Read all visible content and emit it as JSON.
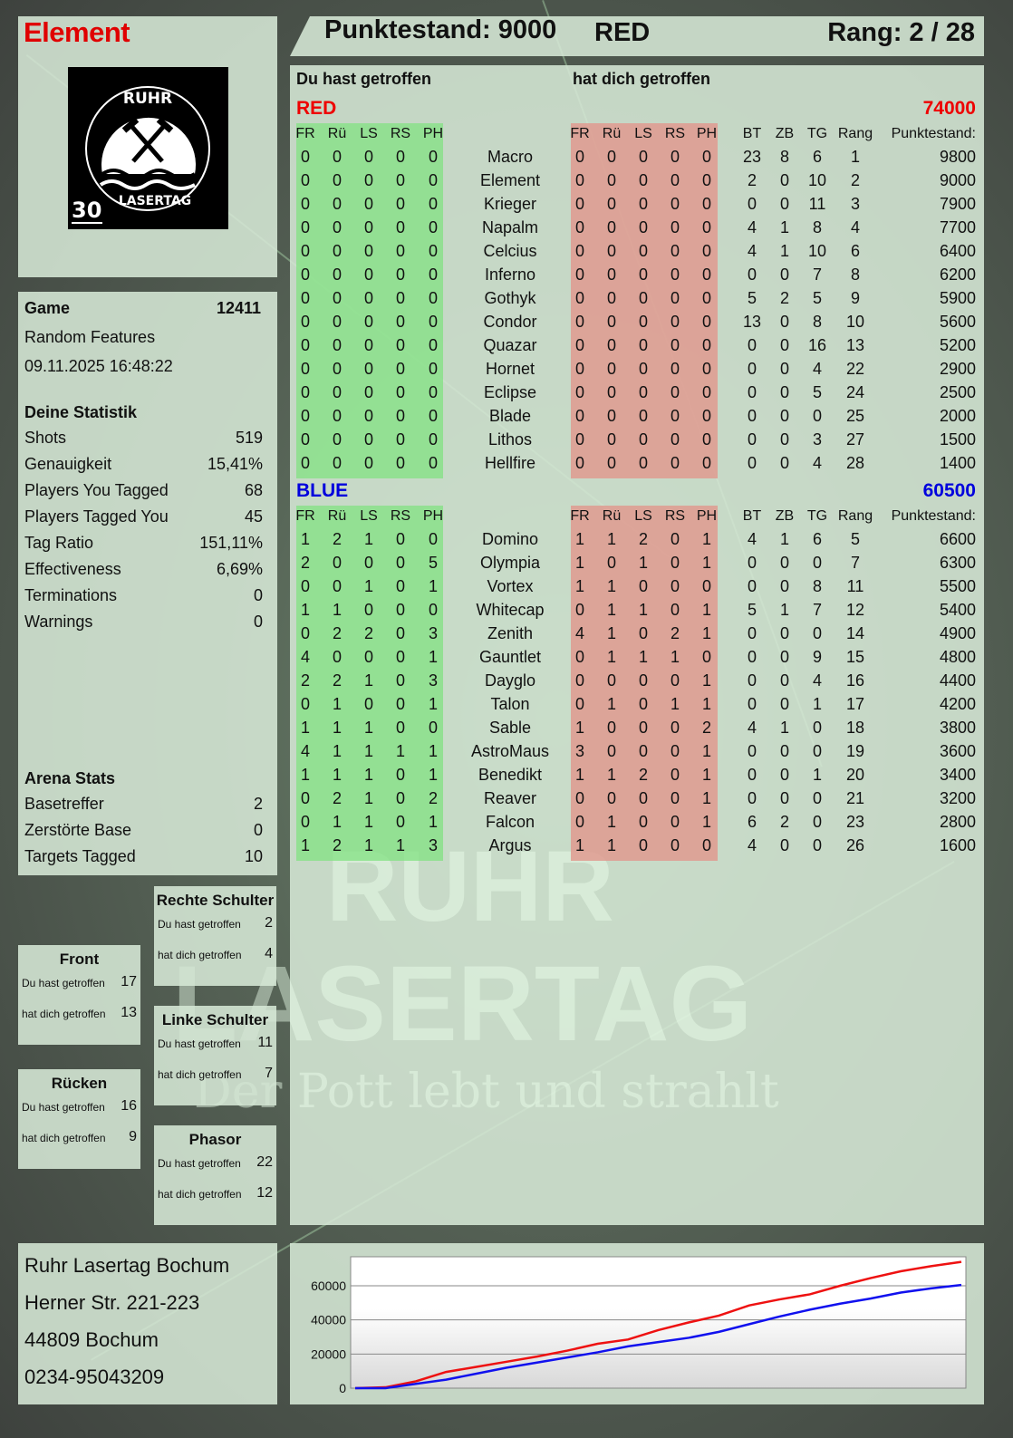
{
  "player": {
    "name": "Element",
    "score_label": "Punktestand: 9000",
    "team": "RED",
    "rank_label": "Rang: 2 / 28"
  },
  "logo": {
    "top_text": "RUHR",
    "bottom_text": "LASERTAG",
    "badge": "30"
  },
  "watermark": {
    "line1": "RUHR",
    "line2": "LASERTAG",
    "slogan": "Der Pott lebt und strahlt"
  },
  "game": {
    "label": "Game",
    "id": "12411",
    "mode": "Random Features",
    "datetime": "09.11.2025 16:48:22"
  },
  "stats": {
    "title": "Deine Statistik",
    "rows": [
      {
        "label": "Shots",
        "value": "519"
      },
      {
        "label": "Genauigkeit",
        "value": "15,41%"
      },
      {
        "label": "Players You Tagged",
        "value": "68"
      },
      {
        "label": "Players Tagged You",
        "value": "45"
      },
      {
        "label": "Tag Ratio",
        "value": "151,11%"
      },
      {
        "label": "Effectiveness",
        "value": "6,69%"
      },
      {
        "label": "Terminations",
        "value": "0"
      },
      {
        "label": "Warnings",
        "value": "0"
      }
    ]
  },
  "arena": {
    "title": "Arena Stats",
    "rows": [
      {
        "label": "Basetreffer",
        "value": "2"
      },
      {
        "label": "Zerstörte Base",
        "value": "0"
      },
      {
        "label": "Targets Tagged",
        "value": "10"
      }
    ]
  },
  "zones": [
    {
      "title": "Rechte Schulter",
      "hit_label": "Du hast getroffen",
      "hit": "2",
      "got_label": "hat dich getroffen",
      "got": "4"
    },
    {
      "title": "Front",
      "hit_label": "Du hast getroffen",
      "hit": "17",
      "got_label": "hat dich getroffen",
      "got": "13"
    },
    {
      "title": "Linke Schulter",
      "hit_label": "Du hast getroffen",
      "hit": "11",
      "got_label": "hat dich getroffen",
      "got": "7"
    },
    {
      "title": "Rücken",
      "hit_label": "Du hast getroffen",
      "hit": "16",
      "got_label": "hat dich getroffen",
      "got": "9"
    },
    {
      "title": "Phasor",
      "hit_label": "Du hast getroffen",
      "hit": "22",
      "got_label": "hat dich getroffen",
      "got": "12"
    }
  ],
  "address": [
    "Ruhr Lasertag Bochum",
    "Herner Str. 221-223",
    "44809 Bochum",
    "0234-95043209"
  ],
  "table": {
    "you_hit": "Du hast getroffen",
    "hit_you": "hat dich getroffen",
    "hit_cols": [
      "FR",
      "Rü",
      "LS",
      "RS",
      "PH"
    ],
    "stat_cols": [
      "BT",
      "ZB",
      "TG",
      "Rang"
    ],
    "score_col": "Punktestand:",
    "teams": [
      {
        "name": "RED",
        "total": "74000",
        "color": "#ee0000",
        "players": [
          [
            "Macro",
            [
              0,
              0,
              0,
              0,
              0
            ],
            [
              0,
              0,
              0,
              0,
              0
            ],
            [
              23,
              8,
              6,
              1
            ],
            9800
          ],
          [
            "Element",
            [
              0,
              0,
              0,
              0,
              0
            ],
            [
              0,
              0,
              0,
              0,
              0
            ],
            [
              2,
              0,
              10,
              2
            ],
            9000
          ],
          [
            "Krieger",
            [
              0,
              0,
              0,
              0,
              0
            ],
            [
              0,
              0,
              0,
              0,
              0
            ],
            [
              0,
              0,
              11,
              3
            ],
            7900
          ],
          [
            "Napalm",
            [
              0,
              0,
              0,
              0,
              0
            ],
            [
              0,
              0,
              0,
              0,
              0
            ],
            [
              4,
              1,
              8,
              4
            ],
            7700
          ],
          [
            "Celcius",
            [
              0,
              0,
              0,
              0,
              0
            ],
            [
              0,
              0,
              0,
              0,
              0
            ],
            [
              4,
              1,
              10,
              6
            ],
            6400
          ],
          [
            "Inferno",
            [
              0,
              0,
              0,
              0,
              0
            ],
            [
              0,
              0,
              0,
              0,
              0
            ],
            [
              0,
              0,
              7,
              8
            ],
            6200
          ],
          [
            "Gothyk",
            [
              0,
              0,
              0,
              0,
              0
            ],
            [
              0,
              0,
              0,
              0,
              0
            ],
            [
              5,
              2,
              5,
              9
            ],
            5900
          ],
          [
            "Condor",
            [
              0,
              0,
              0,
              0,
              0
            ],
            [
              0,
              0,
              0,
              0,
              0
            ],
            [
              13,
              0,
              8,
              10
            ],
            5600
          ],
          [
            "Quazar",
            [
              0,
              0,
              0,
              0,
              0
            ],
            [
              0,
              0,
              0,
              0,
              0
            ],
            [
              0,
              0,
              16,
              13
            ],
            5200
          ],
          [
            "Hornet",
            [
              0,
              0,
              0,
              0,
              0
            ],
            [
              0,
              0,
              0,
              0,
              0
            ],
            [
              0,
              0,
              4,
              22
            ],
            2900
          ],
          [
            "Eclipse",
            [
              0,
              0,
              0,
              0,
              0
            ],
            [
              0,
              0,
              0,
              0,
              0
            ],
            [
              0,
              0,
              5,
              24
            ],
            2500
          ],
          [
            "Blade",
            [
              0,
              0,
              0,
              0,
              0
            ],
            [
              0,
              0,
              0,
              0,
              0
            ],
            [
              0,
              0,
              0,
              25
            ],
            2000
          ],
          [
            "Lithos",
            [
              0,
              0,
              0,
              0,
              0
            ],
            [
              0,
              0,
              0,
              0,
              0
            ],
            [
              0,
              0,
              3,
              27
            ],
            1500
          ],
          [
            "Hellfire",
            [
              0,
              0,
              0,
              0,
              0
            ],
            [
              0,
              0,
              0,
              0,
              0
            ],
            [
              0,
              0,
              4,
              28
            ],
            1400
          ]
        ]
      },
      {
        "name": "BLUE",
        "total": "60500",
        "color": "#0000dd",
        "players": [
          [
            "Domino",
            [
              1,
              2,
              1,
              0,
              0
            ],
            [
              1,
              1,
              2,
              0,
              1
            ],
            [
              4,
              1,
              6,
              5
            ],
            6600
          ],
          [
            "Olympia",
            [
              2,
              0,
              0,
              0,
              5
            ],
            [
              1,
              0,
              1,
              0,
              1
            ],
            [
              0,
              0,
              0,
              7
            ],
            6300
          ],
          [
            "Vortex",
            [
              0,
              0,
              1,
              0,
              1
            ],
            [
              1,
              1,
              0,
              0,
              0
            ],
            [
              0,
              0,
              8,
              11
            ],
            5500
          ],
          [
            "Whitecap",
            [
              1,
              1,
              0,
              0,
              0
            ],
            [
              0,
              1,
              1,
              0,
              1
            ],
            [
              5,
              1,
              7,
              12
            ],
            5400
          ],
          [
            "Zenith",
            [
              0,
              2,
              2,
              0,
              3
            ],
            [
              4,
              1,
              0,
              2,
              1
            ],
            [
              0,
              0,
              0,
              14
            ],
            4900
          ],
          [
            "Gauntlet",
            [
              4,
              0,
              0,
              0,
              1
            ],
            [
              0,
              1,
              1,
              1,
              0
            ],
            [
              0,
              0,
              9,
              15
            ],
            4800
          ],
          [
            "Dayglo",
            [
              2,
              2,
              1,
              0,
              3
            ],
            [
              0,
              0,
              0,
              0,
              1
            ],
            [
              0,
              0,
              4,
              16
            ],
            4400
          ],
          [
            "Talon",
            [
              0,
              1,
              0,
              0,
              1
            ],
            [
              0,
              1,
              0,
              1,
              1
            ],
            [
              0,
              0,
              1,
              17
            ],
            4200
          ],
          [
            "Sable",
            [
              1,
              1,
              1,
              0,
              0
            ],
            [
              1,
              0,
              0,
              0,
              2
            ],
            [
              4,
              1,
              0,
              18
            ],
            3800
          ],
          [
            "AstroMaus",
            [
              4,
              1,
              1,
              1,
              1
            ],
            [
              3,
              0,
              0,
              0,
              1
            ],
            [
              0,
              0,
              0,
              19
            ],
            3600
          ],
          [
            "Benedikt",
            [
              1,
              1,
              1,
              0,
              1
            ],
            [
              1,
              1,
              2,
              0,
              1
            ],
            [
              0,
              0,
              1,
              20
            ],
            3400
          ],
          [
            "Reaver",
            [
              0,
              2,
              1,
              0,
              2
            ],
            [
              0,
              0,
              0,
              0,
              1
            ],
            [
              0,
              0,
              0,
              21
            ],
            3200
          ],
          [
            "Falcon",
            [
              0,
              1,
              1,
              0,
              1
            ],
            [
              0,
              1,
              0,
              0,
              1
            ],
            [
              6,
              2,
              0,
              23
            ],
            2800
          ],
          [
            "Argus",
            [
              1,
              2,
              1,
              1,
              3
            ],
            [
              1,
              1,
              0,
              0,
              0
            ],
            [
              4,
              0,
              0,
              26
            ],
            1600
          ]
        ]
      }
    ]
  },
  "chart_data": {
    "type": "line",
    "title": "",
    "xlabel": "",
    "ylabel": "",
    "ylim": [
      0,
      77000
    ],
    "yticks": [
      0,
      20000,
      40000,
      60000
    ],
    "grid": true,
    "x": [
      0,
      1,
      2,
      3,
      4,
      5,
      6,
      7,
      8,
      9,
      10,
      11,
      12,
      13,
      14,
      15,
      16,
      17,
      18,
      19,
      20
    ],
    "series": [
      {
        "color": "#ee1111",
        "values": [
          0,
          500,
          4000,
          9500,
          12500,
          15500,
          18500,
          22000,
          26000,
          28500,
          34000,
          38500,
          42500,
          48500,
          52000,
          55000,
          60000,
          64500,
          68500,
          71500,
          74000
        ]
      },
      {
        "color": "#1111ee",
        "values": [
          0,
          0,
          2500,
          5000,
          8500,
          12000,
          15000,
          18000,
          21000,
          24500,
          27000,
          29500,
          33000,
          37500,
          42000,
          46000,
          49500,
          52500,
          56000,
          58500,
          60500
        ]
      }
    ]
  }
}
